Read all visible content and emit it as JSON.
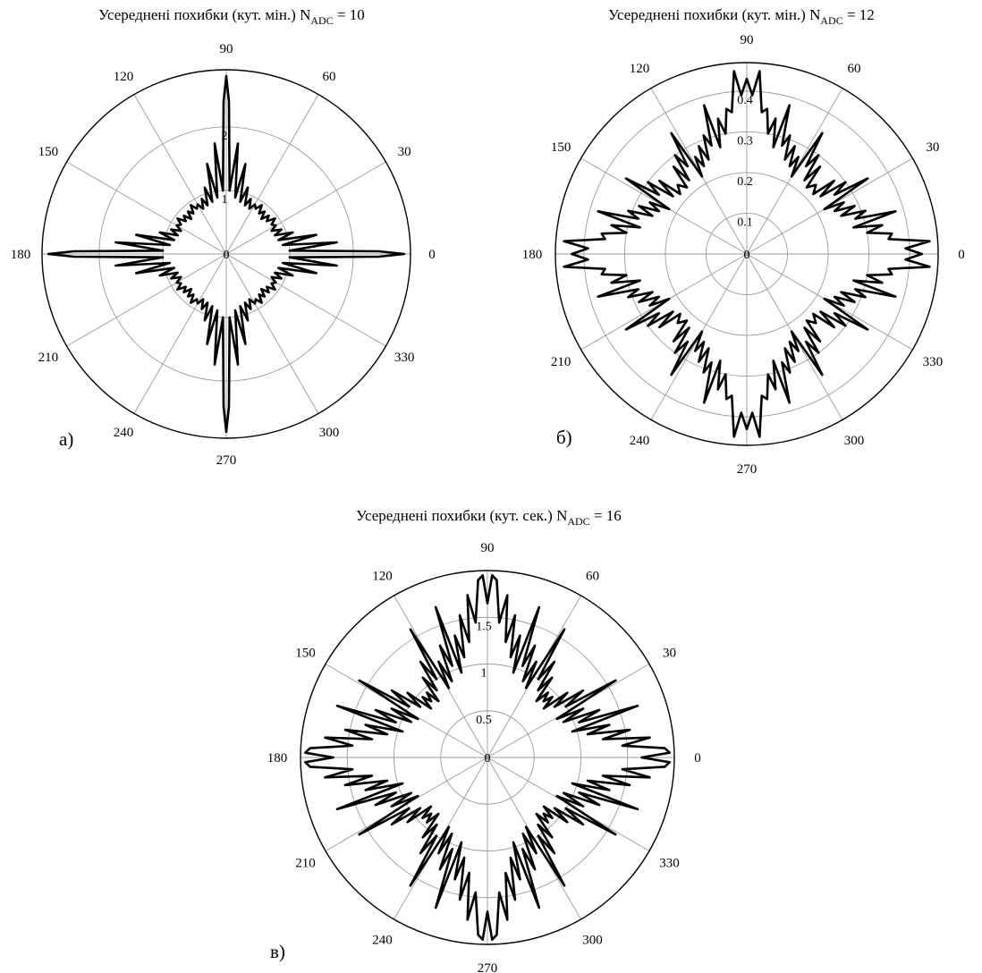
{
  "chart_data": [
    {
      "type": "polar-line",
      "panel_label": "а)",
      "title_prefix": "Усереднені похибки (кут. мін.)",
      "title_var": "N",
      "title_sub": "ADC",
      "title_suffix": " = 10",
      "angle_labels": [
        "0",
        "30",
        "60",
        "90",
        "120",
        "150",
        "180",
        "210",
        "240",
        "270",
        "300",
        "330"
      ],
      "r_ticks": [
        {
          "value": 1,
          "label": "1"
        },
        {
          "value": 2,
          "label": "2"
        }
      ],
      "r_max": 2.9,
      "center_label": "0",
      "series": [
        {
          "angle_deg": [
            0,
            1,
            3,
            6,
            9,
            12,
            15,
            18,
            21,
            24,
            27,
            30,
            33,
            36,
            39,
            42,
            45
          ],
          "r": [
            2.8,
            2.4,
            1.0,
            1.75,
            0.9,
            1.45,
            0.85,
            1.1,
            0.82,
            0.95,
            0.8,
            0.9,
            0.85,
            0.95,
            0.82,
            0.9,
            0.78
          ]
        }
      ],
      "grid": true
    },
    {
      "type": "polar-line",
      "panel_label": "б)",
      "title_prefix": "Усереднені похибки (кут. мін.)",
      "title_var": "N",
      "title_sub": "ADC",
      "title_suffix": " = 12",
      "angle_labels": [
        "0",
        "30",
        "60",
        "90",
        "120",
        "150",
        "180",
        "210",
        "240",
        "270",
        "300",
        "330"
      ],
      "r_ticks": [
        {
          "value": 0.1,
          "label": "0.1"
        },
        {
          "value": 0.2,
          "label": "0.2"
        },
        {
          "value": 0.3,
          "label": "0.3"
        },
        {
          "value": 0.4,
          "label": "0.4"
        }
      ],
      "r_max": 0.47,
      "center_label": "0",
      "series": [
        {
          "angle_deg": [
            0,
            2,
            4,
            6,
            8,
            10,
            12,
            14,
            16,
            18,
            20,
            22,
            24,
            26,
            28,
            30,
            32,
            34,
            36,
            38,
            40,
            42,
            45
          ],
          "r": [
            0.43,
            0.39,
            0.45,
            0.35,
            0.36,
            0.3,
            0.34,
            0.27,
            0.38,
            0.28,
            0.31,
            0.25,
            0.29,
            0.24,
            0.27,
            0.22,
            0.35,
            0.26,
            0.3,
            0.23,
            0.28,
            0.22,
            0.24
          ]
        }
      ],
      "grid": true
    },
    {
      "type": "polar-line",
      "panel_label": "в)",
      "title_prefix": "Усереднені похибки (кут. сек.)",
      "title_var": "N",
      "title_sub": "ADC",
      "title_suffix": " = 16",
      "angle_labels": [
        "0",
        "30",
        "60",
        "90",
        "120",
        "150",
        "180",
        "210",
        "240",
        "270",
        "300",
        "330"
      ],
      "r_ticks": [
        {
          "value": 0.5,
          "label": "0.5"
        },
        {
          "value": 1,
          "label": "1"
        },
        {
          "value": 1.5,
          "label": "1.5"
        }
      ],
      "r_max": 2.0,
      "center_label": "0",
      "series": [
        {
          "angle_deg": [
            0,
            1.5,
            3,
            5,
            7,
            9,
            11,
            13,
            15,
            17,
            19,
            21,
            23,
            25,
            27,
            29,
            31,
            33,
            35,
            37,
            39,
            41,
            43,
            45
          ],
          "r": [
            1.65,
            1.95,
            1.9,
            1.45,
            1.75,
            1.25,
            1.55,
            1.1,
            1.35,
            0.95,
            1.7,
            1.05,
            1.3,
            0.9,
            1.15,
            0.85,
            1.6,
            1.0,
            1.25,
            0.9,
            1.1,
            0.8,
            0.95,
            0.85
          ]
        }
      ],
      "grid": true
    }
  ]
}
